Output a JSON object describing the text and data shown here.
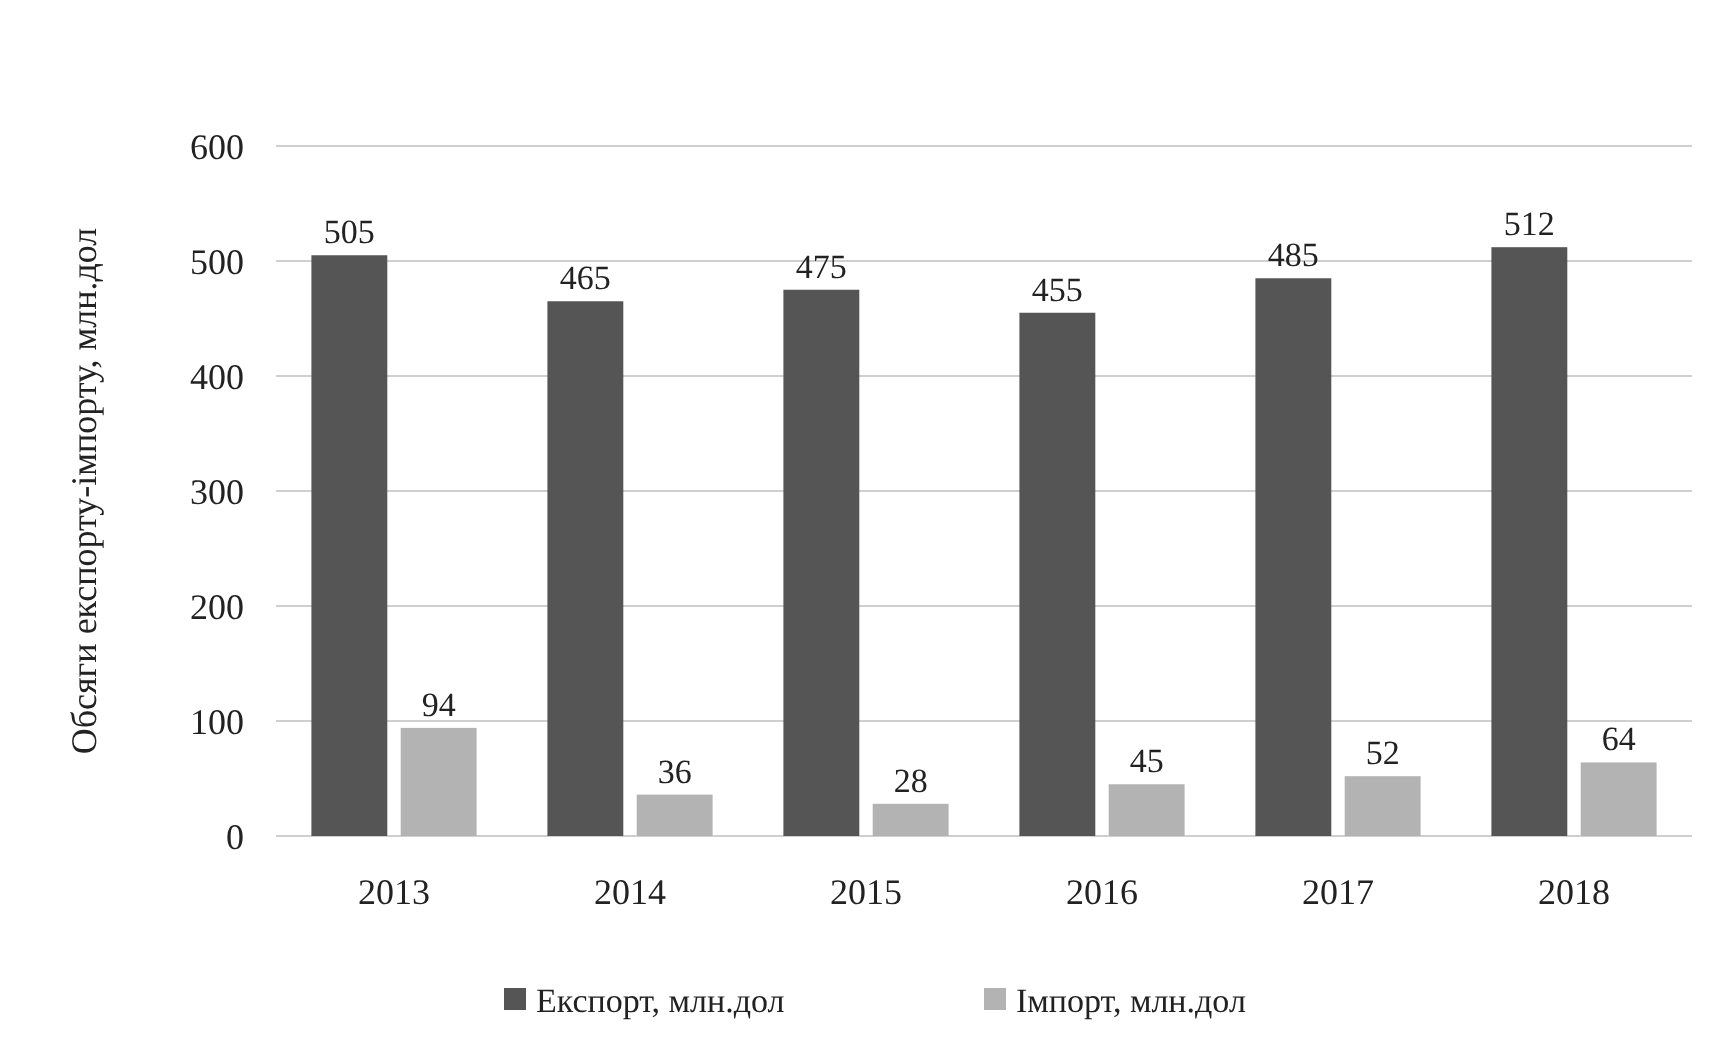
{
  "chart_data": {
    "type": "bar",
    "ylabel": "Обсяги експорту-імпорту, млн.дол",
    "categories": [
      "2013",
      "2014",
      "2015",
      "2016",
      "2017",
      "2018"
    ],
    "series": [
      {
        "name": "Експорт, млн.дол",
        "color": "#555555",
        "values": [
          505,
          465,
          475,
          455,
          485,
          512
        ]
      },
      {
        "name": "Імпорт, млн.дол",
        "color": "#b3b3b3",
        "values": [
          94,
          36,
          28,
          45,
          52,
          64
        ]
      }
    ],
    "ylim": [
      0,
      600
    ],
    "yticks": [
      0,
      100,
      200,
      300,
      400,
      500,
      600
    ],
    "grid": "y",
    "legend": "bottom",
    "data_labels": true
  }
}
